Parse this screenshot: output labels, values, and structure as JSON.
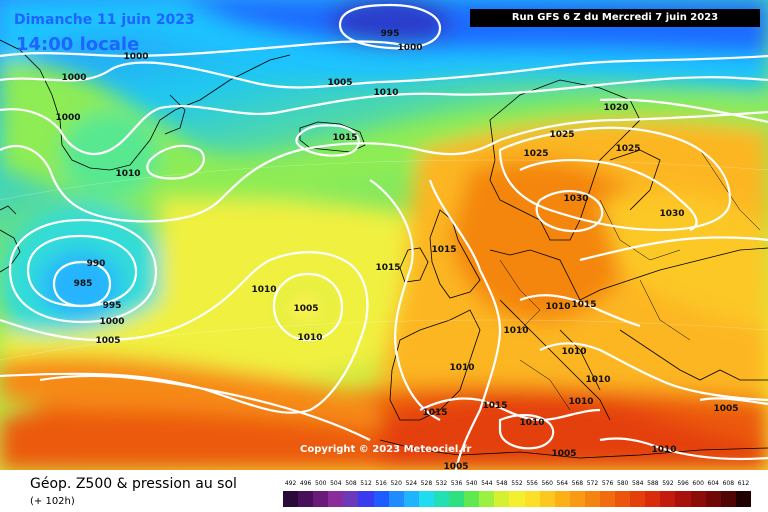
{
  "header": {
    "date": "Dimanche 11 juin 2023",
    "time": "14:00 locale",
    "run": "Run GFS 6 Z du Mercredi 7 juin 2023"
  },
  "map": {
    "copyright": "Copyright © 2023 Meteociel.fr",
    "isobar_labels": [
      "995",
      "1000",
      "1000",
      "1000",
      "1000",
      "1005",
      "1010",
      "1015",
      "1010",
      "990",
      "985",
      "995",
      "1000",
      "1005",
      "1010",
      "1005",
      "1010",
      "1015",
      "1015",
      "1020",
      "1025",
      "1025",
      "1025",
      "1030",
      "1030",
      "1015",
      "1010",
      "1010",
      "1010",
      "1010",
      "1010",
      "1015",
      "1015",
      "1010",
      "1010",
      "1005",
      "1005",
      "1010",
      "1005"
    ]
  },
  "footer": {
    "variable": "Géop. Z500 & pression au sol",
    "lead": "(+ 102h)"
  },
  "scale": {
    "labels": [
      "492",
      "496",
      "500",
      "504",
      "508",
      "512",
      "516",
      "520",
      "524",
      "528",
      "532",
      "536",
      "540",
      "544",
      "548",
      "552",
      "556",
      "560",
      "564",
      "568",
      "572",
      "576",
      "580",
      "584",
      "588",
      "592",
      "596",
      "600",
      "604",
      "608",
      "612"
    ],
    "colors": [
      "#2a0a3a",
      "#4a0f5a",
      "#6a1a7a",
      "#8a2c9a",
      "#6a3aba",
      "#3a3aee",
      "#1e5cff",
      "#1e8cff",
      "#20b4ff",
      "#20dcf0",
      "#22e0b4",
      "#30e080",
      "#60e850",
      "#9cf040",
      "#d4f030",
      "#f4f030",
      "#fce028",
      "#fcc820",
      "#fcb018",
      "#f89a14",
      "#f48410",
      "#f06c0e",
      "#ec560c",
      "#e4400c",
      "#d82c0c",
      "#c41c0c",
      "#a8120a",
      "#8c0c08",
      "#700806",
      "#500404",
      "#200000"
    ]
  }
}
